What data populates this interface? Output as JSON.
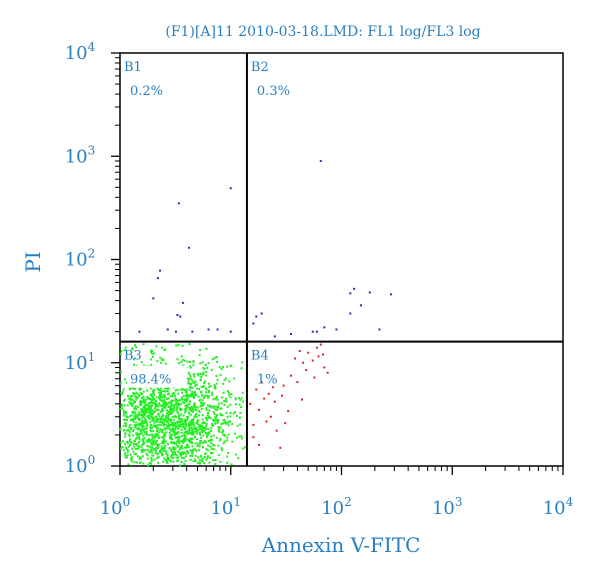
{
  "chart_data": {
    "type": "scatter",
    "title": "(F1)[A]11 2010-03-18.LMD: FL1 log/FL3 log",
    "xlabel": "Annexin V-FITC",
    "ylabel": "PI",
    "x_scale": "log",
    "y_scale": "log",
    "xlim": [
      1,
      10000
    ],
    "ylim": [
      1,
      10000
    ],
    "x_ticks": [
      {
        "base": "10",
        "exp": "0"
      },
      {
        "base": "10",
        "exp": "1"
      },
      {
        "base": "10",
        "exp": "2"
      },
      {
        "base": "10",
        "exp": "3"
      },
      {
        "base": "10",
        "exp": "4"
      }
    ],
    "y_ticks": [
      {
        "base": "10",
        "exp": "0"
      },
      {
        "base": "10",
        "exp": "1"
      },
      {
        "base": "10",
        "exp": "2"
      },
      {
        "base": "10",
        "exp": "3"
      },
      {
        "base": "10",
        "exp": "4"
      }
    ],
    "gates": {
      "x": 14,
      "y": 16
    },
    "grid": false,
    "quadrants": [
      {
        "name": "B1",
        "percent": "0.2%",
        "color": "#2233bb"
      },
      {
        "name": "B2",
        "percent": "0.3%",
        "color": "#2233bb"
      },
      {
        "name": "B3",
        "percent": "98.4%",
        "color": "#22ee22"
      },
      {
        "name": "B4",
        "percent": "1%",
        "color": "#dd2222"
      }
    ],
    "series": [
      {
        "quadrant": "B1",
        "color": "#2233bb",
        "points": [
          [
            10,
            490
          ],
          [
            3.4,
            350
          ],
          [
            4.2,
            130
          ],
          [
            2.3,
            78
          ],
          [
            2.2,
            66
          ],
          [
            2,
            42
          ],
          [
            3.7,
            38
          ],
          [
            3.3,
            29
          ],
          [
            3.5,
            28
          ],
          [
            2.7,
            21
          ],
          [
            3.2,
            20
          ],
          [
            4.5,
            20
          ],
          [
            7.6,
            21
          ],
          [
            1.5,
            20
          ],
          [
            6.3,
            21
          ],
          [
            10,
            20
          ]
        ]
      },
      {
        "quadrant": "B2",
        "color": "#2233bb",
        "points": [
          [
            65,
            900
          ],
          [
            280,
            46
          ],
          [
            130,
            52
          ],
          [
            120,
            47
          ],
          [
            180,
            48
          ],
          [
            150,
            36
          ],
          [
            120,
            30
          ],
          [
            19,
            30
          ],
          [
            17,
            28
          ],
          [
            16,
            24
          ],
          [
            70,
            22
          ],
          [
            220,
            21
          ],
          [
            25,
            18
          ],
          [
            35,
            19
          ],
          [
            55,
            20
          ],
          [
            90,
            21
          ],
          [
            60,
            20
          ]
        ]
      },
      {
        "quadrant": "B3",
        "color": "#22ee22",
        "cluster": {
          "center": [
            2.7,
            2.9
          ],
          "spread": [
            0.32,
            0.3
          ],
          "count": 1700
        }
      },
      {
        "quadrant": "B4",
        "color": "#dd2222",
        "points": [
          [
            20,
            4.5
          ],
          [
            18,
            3.5
          ],
          [
            22,
            5
          ],
          [
            16,
            2.5
          ],
          [
            25,
            4.2
          ],
          [
            30,
            6
          ],
          [
            35,
            7.5
          ],
          [
            45,
            10
          ],
          [
            50,
            12.5
          ],
          [
            60,
            14
          ],
          [
            70,
            9
          ],
          [
            65,
            15
          ],
          [
            18,
            1.6
          ],
          [
            28,
            1.5
          ],
          [
            17,
            5.5
          ],
          [
            23,
            3
          ],
          [
            40,
            6.5
          ],
          [
            55,
            10.5
          ],
          [
            75,
            8
          ],
          [
            15,
            4
          ],
          [
            26,
            2.2
          ],
          [
            33,
            3.4
          ],
          [
            19,
            6.5
          ],
          [
            21,
            2.7
          ],
          [
            48,
            8.5
          ],
          [
            38,
            11
          ],
          [
            62,
            11.5
          ],
          [
            29,
            4.8
          ],
          [
            16,
            1.9
          ],
          [
            24,
            5.8
          ],
          [
            42,
            13
          ],
          [
            57,
            7.2
          ],
          [
            31,
            2.6
          ],
          [
            44,
            4.4
          ],
          [
            68,
            12
          ]
        ]
      }
    ]
  }
}
